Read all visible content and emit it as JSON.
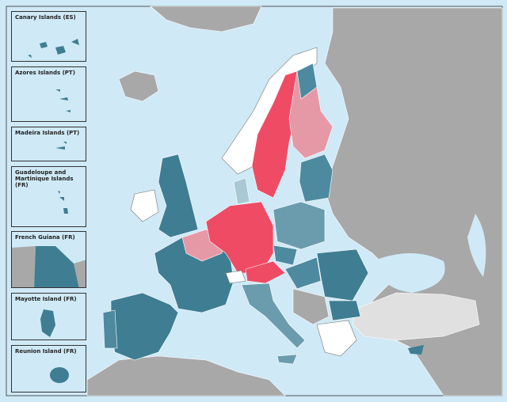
{
  "insets": [
    {
      "label": "Canary Islands (ES)"
    },
    {
      "label": "Azores Islands (PT)"
    },
    {
      "label": "Madeira Islands (PT)"
    },
    {
      "label": "Guadeloupe and Martinique Islands (FR)"
    },
    {
      "label": "French Guiana (FR)"
    },
    {
      "label": "Mayotte Island (FR)"
    },
    {
      "label": "Reunion Island (FR)"
    }
  ]
}
